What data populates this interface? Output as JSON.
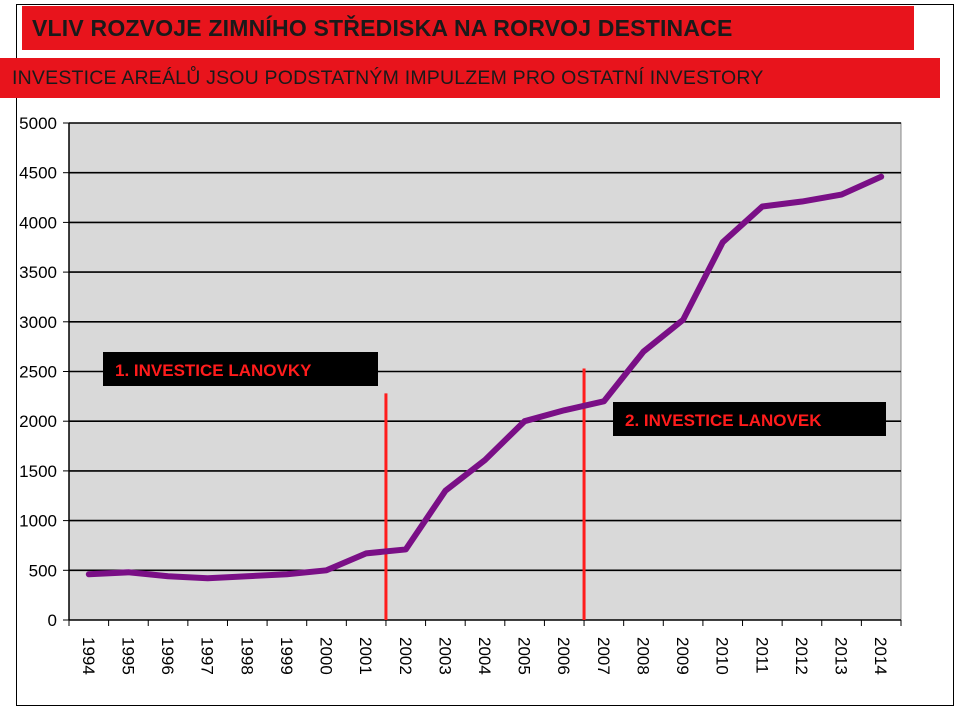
{
  "chart_data": {
    "type": "line",
    "title": "VLIV ROZVOJE ZIMNÍHO STŘEDISKA  NA  RORVOJ  DESTINACE",
    "subtitle": "INVESTICE  AREÁLŮ JSOU PODSTATNÝM IMPULZEM PRO OSTATNÍ  INVESTORY",
    "xlabel": "",
    "ylabel": "",
    "ylim": [
      0,
      5000
    ],
    "yticks": [
      "0",
      "500",
      "1000",
      "1500",
      "2000",
      "2500",
      "3000",
      "3500",
      "4000",
      "4500",
      "5000"
    ],
    "categories": [
      "1994",
      "1995",
      "1996",
      "1997",
      "1998",
      "1999",
      "2000",
      "2001",
      "2002",
      "2003",
      "2004",
      "2005",
      "2006",
      "2007",
      "2008",
      "2009",
      "2010",
      "2011",
      "2012",
      "2013",
      "2014"
    ],
    "series": [
      {
        "values": [
          460,
          480,
          440,
          420,
          440,
          460,
          500,
          670,
          710,
          1300,
          1610,
          2000,
          2110,
          2200,
          2700,
          3020,
          3800,
          4160,
          4210,
          4280,
          4460
        ],
        "color": "#7a0f86"
      }
    ],
    "grid": true,
    "plot_background": "#d9d9d9",
    "annotations": [
      {
        "text": "1. INVESTICE  LANOVKY",
        "marker_color": "#ff1c1c",
        "line_value": 2280
      },
      {
        "text": "2. INVESTICE  LANOVEK",
        "marker_color": "#ff1c1c",
        "line_value": 2530
      }
    ],
    "header_color": "#e8141c"
  }
}
